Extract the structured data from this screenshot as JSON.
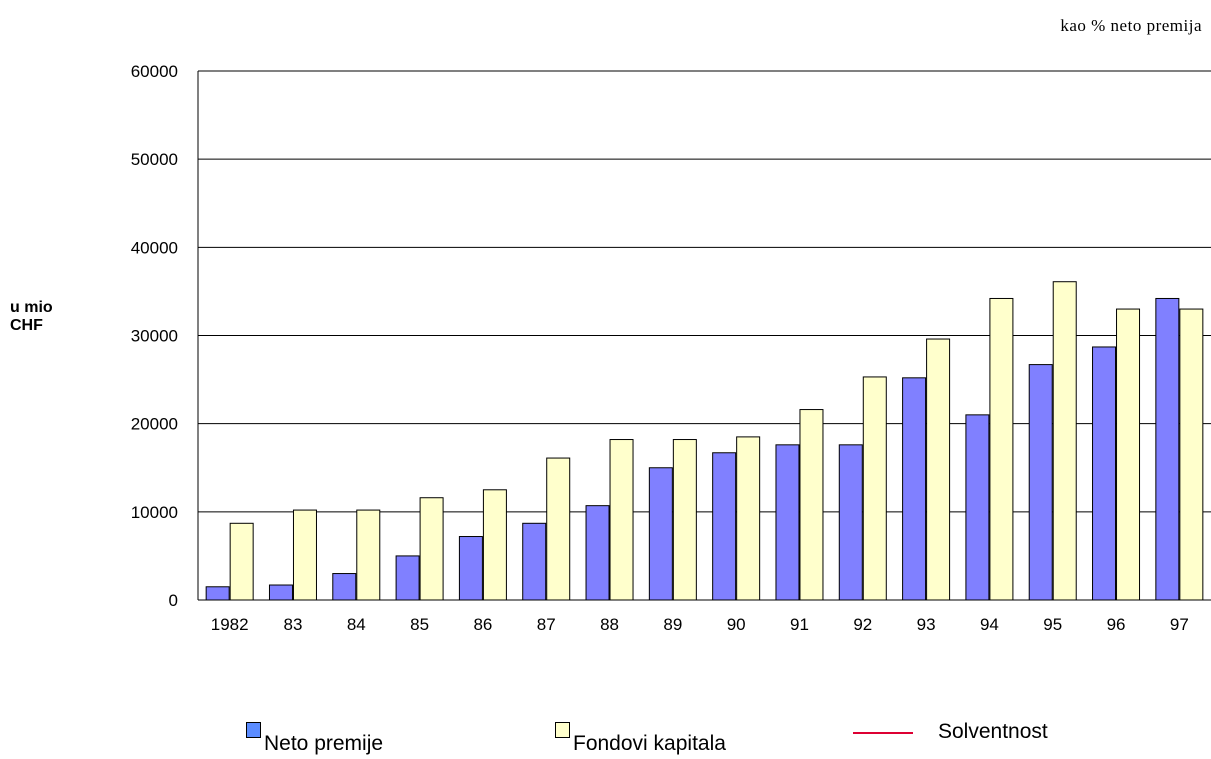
{
  "chart_data": {
    "type": "bar",
    "title": "",
    "note": "kao % neto premija",
    "ylabel": "u mio CHF",
    "xlabel": "",
    "ylim": [
      0,
      60000
    ],
    "yticks": [
      0,
      10000,
      20000,
      30000,
      40000,
      50000,
      60000
    ],
    "categories": [
      "1982",
      "83",
      "84",
      "85",
      "86",
      "87",
      "88",
      "89",
      "90",
      "91",
      "92",
      "93",
      "94",
      "95",
      "96",
      "97"
    ],
    "series": [
      {
        "name": "Neto premije",
        "color": "#8080ff",
        "values": [
          1500,
          1700,
          3000,
          5000,
          7200,
          8700,
          10700,
          15000,
          16700,
          17600,
          17600,
          25200,
          21000,
          26700,
          28700,
          34200
        ]
      },
      {
        "name": "Fondovi kapitala",
        "color": "#ffffcc",
        "values": [
          8700,
          10200,
          10200,
          11600,
          12500,
          16100,
          18200,
          18200,
          18500,
          21600,
          25300,
          29600,
          34200,
          36100,
          33000,
          33000
        ]
      }
    ],
    "legend": [
      {
        "name": "Neto premije",
        "kind": "box",
        "color": "#5b8cff"
      },
      {
        "name": "Fondovi kapitala",
        "kind": "box",
        "color": "#ffffcc"
      },
      {
        "name": "Solventnost",
        "kind": "line",
        "color": "#dd0033"
      }
    ],
    "grid": true,
    "legend_position": "bottom"
  }
}
